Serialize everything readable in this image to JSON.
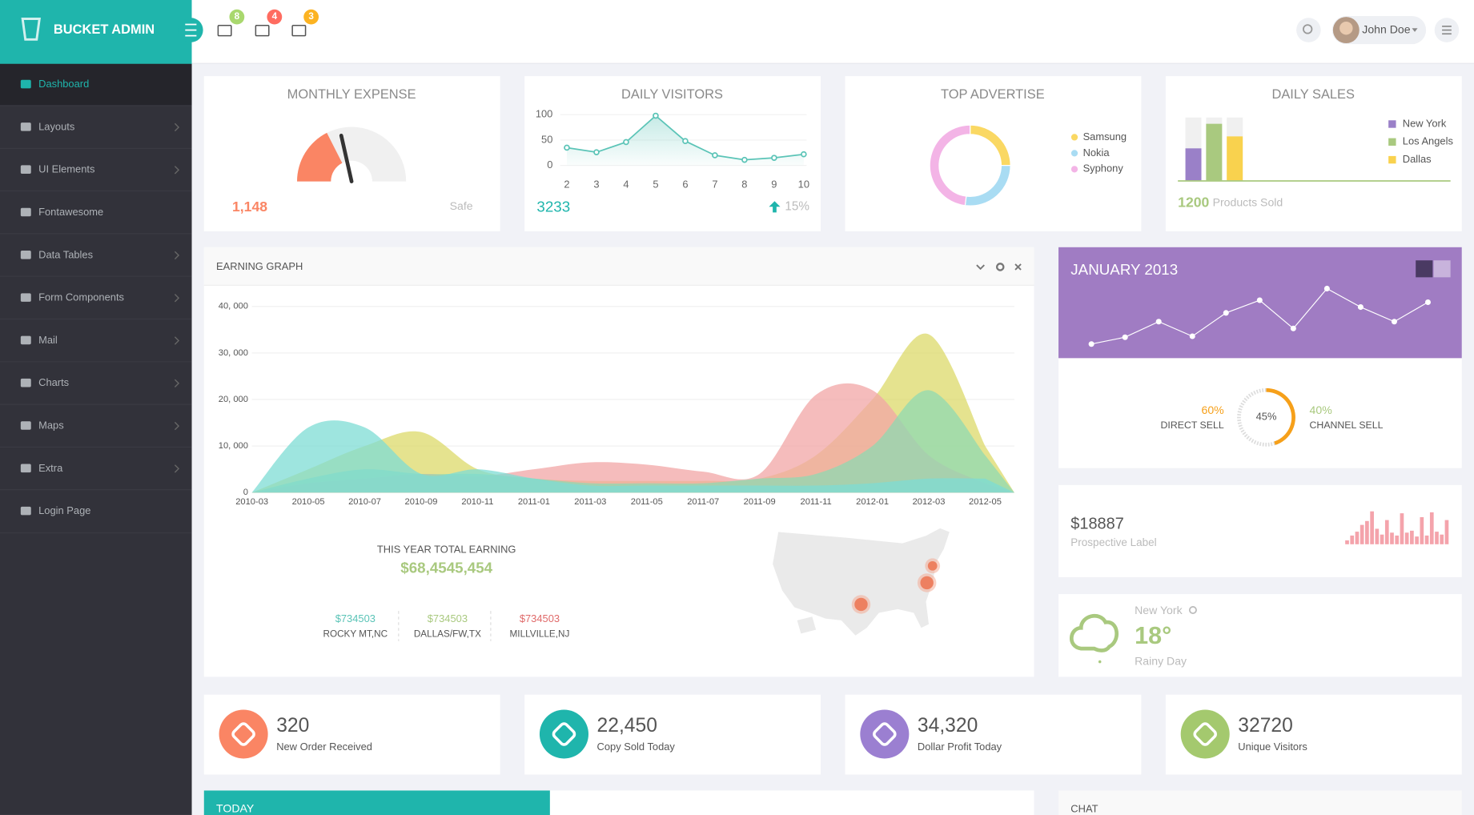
{
  "brand": "BUCKET ADMIN",
  "header": {
    "badges": [
      "8",
      "4",
      "3"
    ],
    "user": "John Doe"
  },
  "sidebar": [
    "Dashboard",
    "Layouts",
    "UI Elements",
    "Fontawesome",
    "Data Tables",
    "Form Components",
    "Mail",
    "Charts",
    "Maps",
    "Extra",
    "Login Page"
  ],
  "monthly_expense": {
    "title": "MONTHLY EXPENSE",
    "value": "1,148",
    "status": "Safe",
    "gauge": 35,
    "color": "#fa8564"
  },
  "daily_visitors": {
    "type": "line",
    "title": "DAILY VISITORS",
    "x": [
      2,
      3,
      4,
      5,
      6,
      7,
      8,
      9,
      10
    ],
    "values": [
      35,
      26,
      46,
      98,
      48,
      20,
      11,
      15,
      22
    ],
    "xlim": [
      2,
      10
    ],
    "ylim": [
      0,
      100
    ],
    "yticks": [
      0,
      50,
      100
    ],
    "color": "#5bc4b7",
    "total": "3233",
    "change": "15%"
  },
  "top_advertise": {
    "type": "pie",
    "title": "TOP ADVERTISE",
    "categories": [
      "Samsung",
      "Nokia",
      "Syphony"
    ],
    "values": [
      25,
      27,
      48
    ],
    "colors": [
      "#fad863",
      "#a9dcf3",
      "#f3b4e6"
    ]
  },
  "daily_sales": {
    "type": "bar",
    "title": "DAILY SALES",
    "ylim": [
      0,
      100
    ],
    "series": [
      {
        "name": "New York",
        "color": "#9a80c8",
        "values": [
          51
        ]
      },
      {
        "name": "Los Angels",
        "color": "#a9c97f",
        "values": [
          90
        ]
      },
      {
        "name": "Dallas",
        "color": "#f9d24e",
        "values": [
          70
        ]
      }
    ],
    "total": "1200",
    "total_label": "Products Sold"
  },
  "earning_graph": {
    "type": "area",
    "title": "EARNING GRAPH",
    "categories": [
      "2010-03",
      "2010-05",
      "2010-07",
      "2010-09",
      "2010-11",
      "2011-01",
      "2011-03",
      "2011-05",
      "2011-07",
      "2011-09",
      "2011-11",
      "2012-01",
      "2012-03",
      "2012-05"
    ],
    "ylim": [
      0,
      40000
    ],
    "yticks": [
      0,
      {
        "value": 10000,
        "label": "10, 000"
      },
      {
        "value": 20000,
        "label": "20, 000"
      },
      {
        "value": 30000,
        "label": "30, 000"
      },
      {
        "value": 40000,
        "label": "40, 000"
      }
    ],
    "series": [
      {
        "color": "#dcd96a",
        "values": [
          0,
          5000,
          10000,
          13000,
          5000,
          3000,
          2500,
          2500,
          2500,
          3000,
          8000,
          20000,
          34000,
          10000
        ]
      },
      {
        "color": "#f2a5a5",
        "values": [
          0,
          2000,
          3000,
          4000,
          3500,
          5000,
          6500,
          6000,
          4500,
          4000,
          21000,
          22000,
          8000,
          2000
        ]
      },
      {
        "color": "#8fd9b2",
        "values": [
          0,
          3000,
          5000,
          4000,
          4000,
          3000,
          2000,
          2000,
          2000,
          3000,
          4000,
          10000,
          22000,
          8000
        ]
      },
      {
        "color": "#7ddcd4",
        "values": [
          0,
          14000,
          14000,
          4000,
          5000,
          3000,
          1500,
          1500,
          1500,
          1500,
          1500,
          2000,
          3000,
          3000
        ]
      }
    ],
    "summary_title": "THIS YEAR TOTAL EARNING",
    "summary_value": "$68,4545,454",
    "locations": [
      {
        "value": "$734503",
        "label": "ROCKY MT,NC",
        "color": "#5bc4b7"
      },
      {
        "value": "$734503",
        "label": "DALLAS/FW,TX",
        "color": "#a9c97f"
      },
      {
        "value": "$734503",
        "label": "MILLVILLE,NJ",
        "color": "#e06a6a"
      }
    ]
  },
  "calendar": {
    "type": "line",
    "title": "JANUARY 2013",
    "values": [
      15,
      22,
      38,
      23,
      47,
      60,
      31,
      72,
      53,
      38,
      58
    ],
    "direct": {
      "value": "60%",
      "label": "DIRECT SELL"
    },
    "channel": {
      "value": "40%",
      "label": "CHANNEL SELL"
    },
    "progress": {
      "value": 45,
      "label": "45%"
    }
  },
  "prospective": {
    "type": "bar",
    "value": "$18887",
    "label": "Prospective Label",
    "color": "#f4a3ab",
    "values": [
      4,
      9,
      13,
      20,
      24,
      34,
      16,
      10,
      25,
      12,
      9,
      32,
      12,
      14,
      8,
      28,
      9,
      33,
      13,
      10,
      25
    ]
  },
  "weather": {
    "city": "New York",
    "temp": "18°",
    "condition": "Rainy Day"
  },
  "stats": [
    {
      "value": "320",
      "label": "New Order Received",
      "color": "#fa8564"
    },
    {
      "value": "22,450",
      "label": "Copy Sold Today",
      "color": "#1fb5ac"
    },
    {
      "value": "34,320",
      "label": "Dollar Profit Today",
      "color": "#9b7fd1"
    },
    {
      "value": "32720",
      "label": "Unique Visitors",
      "color": "#a4c96e"
    }
  ],
  "bottom": {
    "today": "TODAY",
    "chat": "CHAT"
  }
}
